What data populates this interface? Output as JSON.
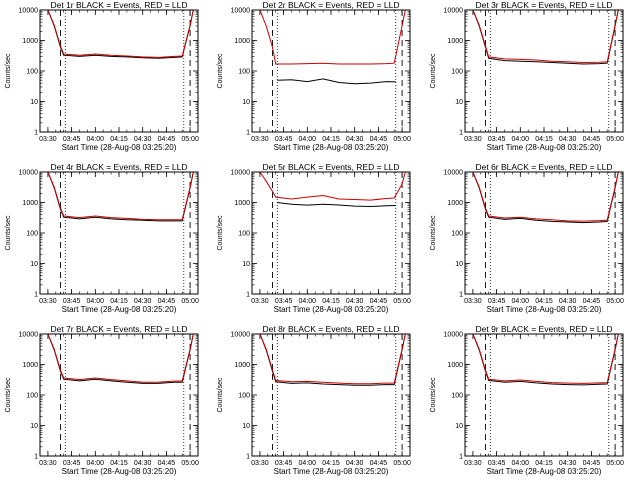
{
  "chart_data": [
    {
      "type": "line",
      "title": "Det 1r BLACK = Events, RED = LLD",
      "xlabel": "",
      "ylabel": "Counts/sec",
      "yscale": "log",
      "ylim": [
        1,
        10000
      ],
      "xticks": [
        "03:30",
        "03:45",
        "04:00",
        "04:15",
        "04:30",
        "04:45",
        "05:00"
      ],
      "series": [
        {
          "name": "Events",
          "color": "#000000",
          "x": [
            "03:30",
            "03:34",
            "03:38",
            "03:40",
            "03:50",
            "04:00",
            "04:10",
            "04:20",
            "04:30",
            "04:40",
            "04:50",
            "04:55",
            "05:00",
            "05:02"
          ],
          "values": [
            10000,
            3000,
            600,
            330,
            300,
            330,
            300,
            290,
            270,
            260,
            280,
            290,
            3000,
            10000
          ]
        },
        {
          "name": "LLD",
          "color": "#cc0000",
          "x": [
            "03:30",
            "03:34",
            "03:38",
            "03:40",
            "03:50",
            "04:00",
            "04:10",
            "04:20",
            "04:30",
            "04:40",
            "04:50",
            "04:55",
            "05:00",
            "05:02"
          ],
          "values": [
            10000,
            3200,
            650,
            360,
            330,
            360,
            330,
            310,
            290,
            280,
            300,
            310,
            3200,
            10000
          ]
        }
      ]
    },
    {
      "type": "line",
      "title": "Det 2r BLACK = Events, RED = LLD",
      "xlabel": "",
      "ylabel": "Counts/sec",
      "yscale": "log",
      "ylim": [
        1,
        10000
      ],
      "xticks": [
        "03:30",
        "03:45",
        "04:00",
        "04:15",
        "04:30",
        "04:45",
        "05:00"
      ],
      "series": [
        {
          "name": "Events",
          "color": "#000000",
          "x": [
            "03:41",
            "03:50",
            "04:00",
            "04:10",
            "04:20",
            "04:30",
            "04:40",
            "04:50",
            "04:56"
          ],
          "values": [
            50,
            52,
            45,
            55,
            42,
            38,
            40,
            45,
            44
          ]
        },
        {
          "name": "LLD",
          "color": "#cc0000",
          "x": [
            "03:30",
            "03:34",
            "03:38",
            "03:40",
            "03:50",
            "04:00",
            "04:10",
            "04:20",
            "04:30",
            "04:40",
            "04:50",
            "04:55",
            "05:00",
            "05:02"
          ],
          "values": [
            10000,
            3000,
            600,
            170,
            170,
            175,
            180,
            170,
            170,
            170,
            175,
            180,
            3000,
            10000
          ]
        }
      ]
    },
    {
      "type": "line",
      "title": "Det 3r BLACK = Events, RED = LLD",
      "xlabel": "",
      "ylabel": "Counts/sec",
      "yscale": "log",
      "ylim": [
        1,
        10000
      ],
      "xticks": [
        "03:30",
        "03:45",
        "04:00",
        "04:15",
        "04:30",
        "04:45",
        "05:00"
      ],
      "series": [
        {
          "name": "Events",
          "color": "#000000",
          "x": [
            "03:30",
            "03:34",
            "03:38",
            "03:40",
            "03:50",
            "04:00",
            "04:10",
            "04:20",
            "04:30",
            "04:40",
            "04:50",
            "04:55",
            "05:00",
            "05:02"
          ],
          "values": [
            10000,
            3000,
            600,
            260,
            220,
            210,
            200,
            190,
            180,
            170,
            175,
            180,
            3000,
            10000
          ]
        },
        {
          "name": "LLD",
          "color": "#cc0000",
          "x": [
            "03:30",
            "03:34",
            "03:38",
            "03:40",
            "03:50",
            "04:00",
            "04:10",
            "04:20",
            "04:30",
            "04:40",
            "04:50",
            "04:55",
            "05:00",
            "05:02"
          ],
          "values": [
            10000,
            3200,
            650,
            290,
            250,
            240,
            230,
            210,
            200,
            190,
            195,
            200,
            3200,
            10000
          ]
        }
      ]
    },
    {
      "type": "line",
      "title": "Det 4r BLACK = Events, RED = LLD",
      "xlabel": "",
      "ylabel": "Counts/sec",
      "yscale": "log",
      "ylim": [
        1,
        10000
      ],
      "xticks": [
        "03:30",
        "03:45",
        "04:00",
        "04:15",
        "04:30",
        "04:45",
        "05:00"
      ],
      "series": [
        {
          "name": "Events",
          "color": "#000000",
          "x": [
            "03:30",
            "03:34",
            "03:38",
            "03:40",
            "03:50",
            "04:00",
            "04:10",
            "04:20",
            "04:30",
            "04:40",
            "04:50",
            "04:55",
            "05:00",
            "05:02"
          ],
          "values": [
            10000,
            3000,
            600,
            330,
            290,
            330,
            290,
            270,
            260,
            250,
            250,
            250,
            3000,
            10000
          ]
        },
        {
          "name": "LLD",
          "color": "#cc0000",
          "x": [
            "03:30",
            "03:34",
            "03:38",
            "03:40",
            "03:50",
            "04:00",
            "04:10",
            "04:20",
            "04:30",
            "04:40",
            "04:50",
            "04:55",
            "05:00",
            "05:02"
          ],
          "values": [
            10000,
            3200,
            650,
            360,
            320,
            360,
            320,
            300,
            280,
            270,
            270,
            270,
            3200,
            10000
          ]
        }
      ]
    },
    {
      "type": "line",
      "title": "Det 5r BLACK = Events, RED = LLD",
      "xlabel": "",
      "ylabel": "Counts/sec",
      "yscale": "log",
      "ylim": [
        1,
        10000
      ],
      "xticks": [
        "03:30",
        "03:45",
        "04:00",
        "04:15",
        "04:30",
        "04:45",
        "05:00"
      ],
      "series": [
        {
          "name": "Events",
          "color": "#000000",
          "x": [
            "03:41",
            "03:50",
            "04:00",
            "04:10",
            "04:20",
            "04:30",
            "04:40",
            "04:50",
            "04:56"
          ],
          "values": [
            1000,
            880,
            820,
            880,
            830,
            760,
            740,
            780,
            800
          ]
        },
        {
          "name": "LLD",
          "color": "#cc0000",
          "x": [
            "03:30",
            "03:34",
            "03:38",
            "03:40",
            "03:50",
            "04:00",
            "04:10",
            "04:20",
            "04:30",
            "04:40",
            "04:50",
            "04:55",
            "05:00",
            "05:02"
          ],
          "values": [
            10000,
            5000,
            2300,
            1500,
            1300,
            1500,
            1700,
            1300,
            1250,
            1200,
            1350,
            1400,
            4000,
            10000
          ]
        }
      ]
    },
    {
      "type": "line",
      "title": "Det 6r BLACK = Events, RED = LLD",
      "xlabel": "",
      "ylabel": "Counts/sec",
      "yscale": "log",
      "ylim": [
        1,
        10000
      ],
      "xticks": [
        "03:30",
        "03:45",
        "04:00",
        "04:15",
        "04:30",
        "04:45",
        "05:00"
      ],
      "series": [
        {
          "name": "Events",
          "color": "#000000",
          "x": [
            "03:30",
            "03:34",
            "03:38",
            "03:40",
            "03:50",
            "04:00",
            "04:10",
            "04:20",
            "04:30",
            "04:40",
            "04:50",
            "04:55",
            "05:00",
            "05:02"
          ],
          "values": [
            10000,
            3000,
            600,
            330,
            280,
            300,
            260,
            240,
            230,
            220,
            230,
            240,
            3000,
            10000
          ]
        },
        {
          "name": "LLD",
          "color": "#cc0000",
          "x": [
            "03:30",
            "03:34",
            "03:38",
            "03:40",
            "03:50",
            "04:00",
            "04:10",
            "04:20",
            "04:30",
            "04:40",
            "04:50",
            "04:55",
            "05:00",
            "05:02"
          ],
          "values": [
            10000,
            3200,
            650,
            360,
            310,
            330,
            290,
            270,
            250,
            245,
            255,
            265,
            3200,
            10000
          ]
        }
      ]
    },
    {
      "type": "line",
      "title": "Det 7r BLACK = Events, RED = LLD",
      "xlabel": "",
      "ylabel": "Counts/sec",
      "yscale": "log",
      "ylim": [
        1,
        10000
      ],
      "xticks": [
        "03:30",
        "03:45",
        "04:00",
        "04:15",
        "04:30",
        "04:45",
        "05:00"
      ],
      "series": [
        {
          "name": "Events",
          "color": "#000000",
          "x": [
            "03:30",
            "03:34",
            "03:38",
            "03:40",
            "03:50",
            "04:00",
            "04:10",
            "04:20",
            "04:30",
            "04:40",
            "04:50",
            "04:55",
            "05:00",
            "05:02"
          ],
          "values": [
            10000,
            3000,
            600,
            330,
            290,
            330,
            290,
            260,
            240,
            240,
            260,
            260,
            3000,
            10000
          ]
        },
        {
          "name": "LLD",
          "color": "#cc0000",
          "x": [
            "03:30",
            "03:34",
            "03:38",
            "03:40",
            "03:50",
            "04:00",
            "04:10",
            "04:20",
            "04:30",
            "04:40",
            "04:50",
            "04:55",
            "05:00",
            "05:02"
          ],
          "values": [
            10000,
            3200,
            650,
            360,
            320,
            360,
            320,
            290,
            260,
            265,
            285,
            290,
            3200,
            10000
          ]
        }
      ]
    },
    {
      "type": "line",
      "title": "Det 8r BLACK = Events, RED = LLD",
      "xlabel": "",
      "ylabel": "Counts/sec",
      "yscale": "log",
      "ylim": [
        1,
        10000
      ],
      "xticks": [
        "03:30",
        "03:45",
        "04:00",
        "04:15",
        "04:30",
        "04:45",
        "05:00"
      ],
      "series": [
        {
          "name": "Events",
          "color": "#000000",
          "x": [
            "03:30",
            "03:34",
            "03:38",
            "03:40",
            "03:50",
            "04:00",
            "04:10",
            "04:20",
            "04:30",
            "04:40",
            "04:50",
            "04:55",
            "05:00",
            "05:02"
          ],
          "values": [
            10000,
            3000,
            600,
            270,
            240,
            250,
            230,
            220,
            210,
            210,
            220,
            220,
            3000,
            10000
          ]
        },
        {
          "name": "LLD",
          "color": "#cc0000",
          "x": [
            "03:30",
            "03:34",
            "03:38",
            "03:40",
            "03:50",
            "04:00",
            "04:10",
            "04:20",
            "04:30",
            "04:40",
            "04:50",
            "04:55",
            "05:00",
            "05:02"
          ],
          "values": [
            10000,
            3200,
            650,
            300,
            270,
            280,
            260,
            245,
            235,
            235,
            245,
            245,
            3200,
            10000
          ]
        }
      ]
    },
    {
      "type": "line",
      "title": "Det 9r BLACK = Events, RED = LLD",
      "xlabel": "",
      "ylabel": "Counts/sec",
      "yscale": "log",
      "ylim": [
        1,
        10000
      ],
      "xticks": [
        "03:30",
        "03:45",
        "04:00",
        "04:15",
        "04:30",
        "04:45",
        "05:00"
      ],
      "series": [
        {
          "name": "Events",
          "color": "#000000",
          "x": [
            "03:30",
            "03:34",
            "03:38",
            "03:40",
            "03:50",
            "04:00",
            "04:10",
            "04:20",
            "04:30",
            "04:40",
            "04:50",
            "04:55",
            "05:00",
            "05:02"
          ],
          "values": [
            10000,
            3000,
            600,
            300,
            260,
            280,
            250,
            230,
            220,
            215,
            225,
            230,
            3000,
            10000
          ]
        },
        {
          "name": "LLD",
          "color": "#cc0000",
          "x": [
            "03:30",
            "03:34",
            "03:38",
            "03:40",
            "03:50",
            "04:00",
            "04:10",
            "04:20",
            "04:30",
            "04:40",
            "04:50",
            "04:55",
            "05:00",
            "05:02"
          ],
          "values": [
            10000,
            3200,
            650,
            330,
            290,
            310,
            280,
            255,
            245,
            240,
            250,
            255,
            3200,
            10000
          ]
        }
      ]
    }
  ],
  "shared": {
    "xlabel": "Start Time (28-Aug-08 03:25:20)",
    "yticks": [
      "1",
      "10",
      "100",
      "1000",
      "10000"
    ],
    "dashed_markers": [
      "03:38",
      "05:00"
    ],
    "dotted_markers": [
      "03:41",
      "04:56"
    ],
    "x_range": [
      "03:25",
      "05:05"
    ]
  }
}
